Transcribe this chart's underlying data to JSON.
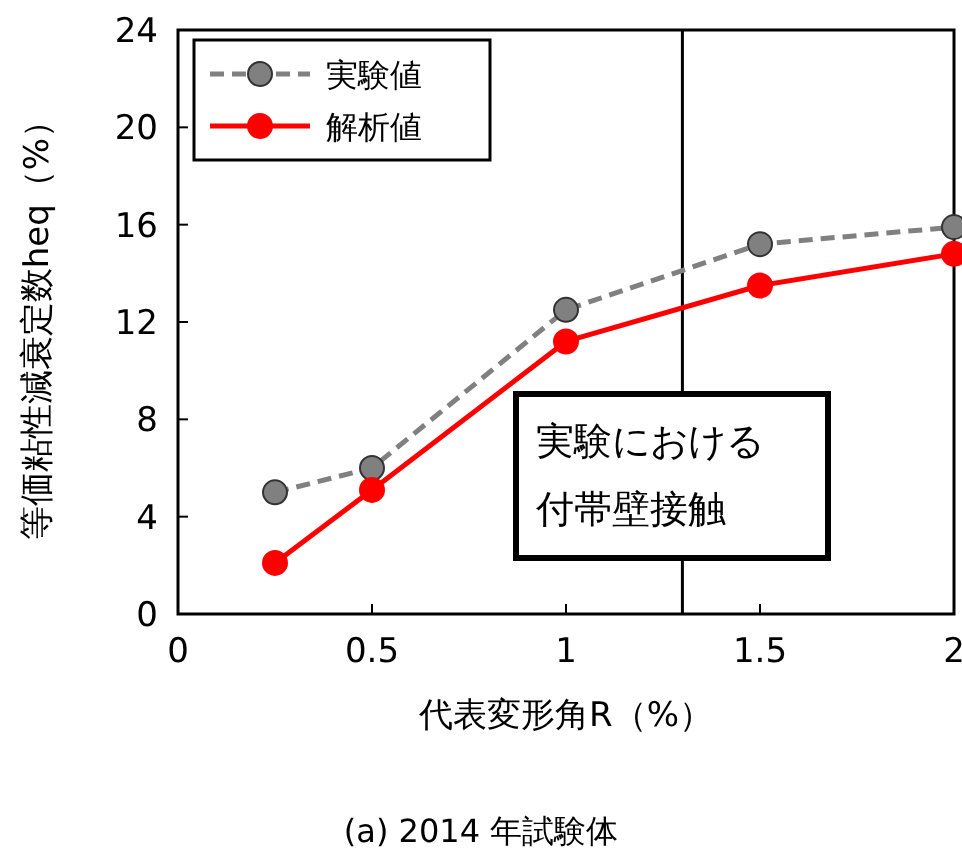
{
  "chart_data": {
    "type": "line",
    "title": "(a) 2014 年試験体",
    "xlabel": "代表変形角R（%）",
    "ylabel": "等価粘性減衰定数heq（%）",
    "x": [
      0.25,
      0.5,
      1,
      1.5,
      2
    ],
    "series": [
      {
        "name": "実験値",
        "color": "#808080",
        "line_style": "dashed",
        "values": [
          5.0,
          6.0,
          12.5,
          15.2,
          15.9
        ]
      },
      {
        "name": "解析値",
        "color": "#ff0000",
        "line_style": "solid",
        "values": [
          2.1,
          5.1,
          11.2,
          13.5,
          14.8
        ]
      }
    ],
    "xlim": [
      0,
      2
    ],
    "xticks": [
      0,
      0.5,
      1,
      1.5,
      2
    ],
    "ylim": [
      0,
      24
    ],
    "yticks": [
      0,
      4,
      8,
      12,
      16,
      20,
      24
    ],
    "ref_lines": [
      {
        "axis": "x",
        "value": 1.3,
        "label": "実験における付帯壁接触",
        "color": "#000000"
      }
    ],
    "marker": "circle",
    "legend": "top left",
    "grid": false
  }
}
